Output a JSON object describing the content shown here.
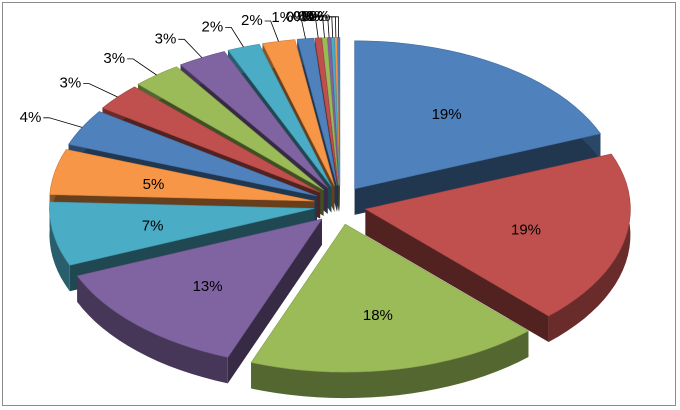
{
  "chart_data": {
    "type": "pie",
    "style": "3d-exploded",
    "legend": "none",
    "slices": [
      {
        "label": "19%",
        "value": 19,
        "color": "#4F81BD"
      },
      {
        "label": "19%",
        "value": 19,
        "color": "#C0504D"
      },
      {
        "label": "18%",
        "value": 18,
        "color": "#9BBB59"
      },
      {
        "label": "13%",
        "value": 13,
        "color": "#8064A2"
      },
      {
        "label": "7%",
        "value": 7,
        "color": "#4BACC6"
      },
      {
        "label": "5%",
        "value": 5,
        "color": "#F79646"
      },
      {
        "label": "4%",
        "value": 4,
        "color": "#4F81BD"
      },
      {
        "label": "3%",
        "value": 3,
        "color": "#C0504D"
      },
      {
        "label": "3%",
        "value": 3,
        "color": "#9BBB59"
      },
      {
        "label": "3%",
        "value": 3,
        "color": "#8064A2"
      },
      {
        "label": "2%",
        "value": 2,
        "color": "#4BACC6"
      },
      {
        "label": "2%",
        "value": 2,
        "color": "#F79646"
      },
      {
        "label": "1%",
        "value": 1,
        "color": "#4F81BD"
      },
      {
        "label": "0%",
        "value": 0.4,
        "color": "#C0504D"
      },
      {
        "label": "0%",
        "value": 0.3,
        "color": "#9BBB59"
      },
      {
        "label": "0%",
        "value": 0.2,
        "color": "#8064A2"
      },
      {
        "label": "0%",
        "value": 0.2,
        "color": "#4BACC6"
      },
      {
        "label": "0%",
        "value": 0.15,
        "color": "#F79646"
      },
      {
        "label": "0%",
        "value": 0.15,
        "color": "#4F81BD"
      }
    ]
  }
}
